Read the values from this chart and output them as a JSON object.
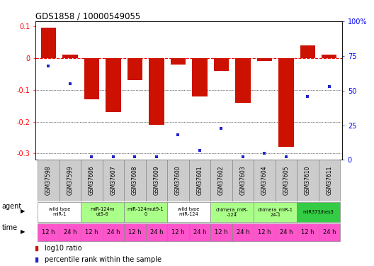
{
  "title": "GDS1858 / 10000549055",
  "samples": [
    "GSM37598",
    "GSM37599",
    "GSM37606",
    "GSM37607",
    "GSM37608",
    "GSM37609",
    "GSM37600",
    "GSM37601",
    "GSM37602",
    "GSM37603",
    "GSM37604",
    "GSM37605",
    "GSM37610",
    "GSM37611"
  ],
  "log10_ratio": [
    0.095,
    0.01,
    -0.13,
    -0.17,
    -0.07,
    -0.21,
    -0.02,
    -0.12,
    -0.04,
    -0.14,
    -0.01,
    -0.28,
    0.04,
    0.01
  ],
  "percentile_rank": [
    68,
    55,
    2,
    2,
    2,
    2,
    18,
    7,
    23,
    2,
    5,
    2,
    46,
    53
  ],
  "agent_groups": [
    {
      "label": "wild type\nmiR-1",
      "cols": [
        0,
        1
      ],
      "color": "#ffffff"
    },
    {
      "label": "miR-124m\nut5-6",
      "cols": [
        2,
        3
      ],
      "color": "#aaff88"
    },
    {
      "label": "miR-124mut9-1\n0",
      "cols": [
        4,
        5
      ],
      "color": "#aaff88"
    },
    {
      "label": "wild type\nmiR-124",
      "cols": [
        6,
        7
      ],
      "color": "#ffffff"
    },
    {
      "label": "chimera_miR-\n-124",
      "cols": [
        8,
        9
      ],
      "color": "#aaff88"
    },
    {
      "label": "chimera_miR-1\n24-1",
      "cols": [
        10,
        11
      ],
      "color": "#aaff88"
    },
    {
      "label": "miR373/hes3",
      "cols": [
        12,
        13
      ],
      "color": "#33cc44"
    }
  ],
  "time_labels": [
    "12 h",
    "24 h",
    "12 h",
    "24 h",
    "12 h",
    "24 h",
    "12 h",
    "24 h",
    "12 h",
    "24 h",
    "12 h",
    "24 h",
    "12 h",
    "24 h"
  ],
  "time_color": "#ff55cc",
  "bar_color": "#cc1100",
  "dot_color": "#2222cc",
  "ylim_left": [
    -0.32,
    0.115
  ],
  "ylim_right": [
    0,
    100
  ],
  "yticks_left": [
    0.1,
    0.0,
    -0.1,
    -0.2,
    -0.3
  ],
  "yticks_right": [
    100,
    75,
    50,
    25,
    0
  ],
  "background_color": "#ffffff",
  "sample_box_color": "#cccccc",
  "agent_row_bg": "#dddddd"
}
